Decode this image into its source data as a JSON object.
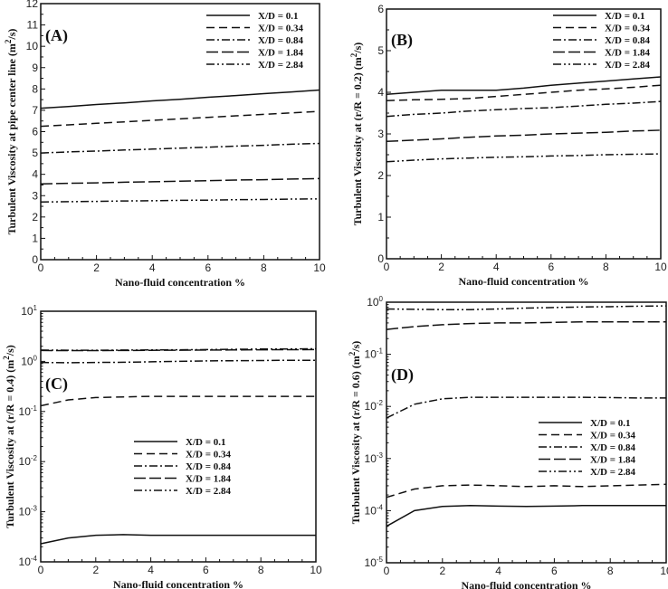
{
  "chart_data": [
    {
      "type": "line",
      "panel_label": "(A)",
      "xlabel": "Nano-fluid concentration %",
      "ylabel": "Turbulent Viscosity at pipe center line (m^2/s)",
      "xlim": [
        0,
        10
      ],
      "ylim": [
        0,
        12
      ],
      "yscale": "linear",
      "xticks": [
        0,
        2,
        4,
        6,
        8,
        10
      ],
      "yticks": [
        0,
        1,
        2,
        3,
        4,
        5,
        6,
        7,
        8,
        9,
        10,
        11,
        12
      ],
      "legend": "top-right",
      "x": [
        0,
        1,
        2,
        3,
        4,
        5,
        6,
        7,
        8,
        9,
        10
      ],
      "series": [
        {
          "name": "X/D = 0.1",
          "values": [
            7.1,
            7.18,
            7.27,
            7.35,
            7.44,
            7.52,
            7.61,
            7.69,
            7.78,
            7.86,
            7.95
          ]
        },
        {
          "name": "X/D = 0.34",
          "values": [
            6.25,
            6.32,
            6.39,
            6.46,
            6.53,
            6.6,
            6.67,
            6.74,
            6.81,
            6.88,
            6.95
          ]
        },
        {
          "name": "X/D = 0.84",
          "values": [
            5.0,
            5.05,
            5.09,
            5.14,
            5.18,
            5.23,
            5.27,
            5.32,
            5.36,
            5.41,
            5.45
          ]
        },
        {
          "name": "X/D = 1.84",
          "values": [
            3.55,
            3.58,
            3.6,
            3.63,
            3.65,
            3.68,
            3.7,
            3.73,
            3.75,
            3.78,
            3.8
          ]
        },
        {
          "name": "X/D = 2.84",
          "values": [
            2.7,
            2.72,
            2.73,
            2.75,
            2.76,
            2.78,
            2.79,
            2.81,
            2.82,
            2.84,
            2.85
          ]
        }
      ]
    },
    {
      "type": "line",
      "panel_label": "(B)",
      "xlabel": "Nano-fluid concentration %",
      "ylabel": "Turbulent Viscosity at (r/R = 0.2) (m^2/s)",
      "xlim": [
        0,
        10
      ],
      "ylim": [
        0,
        6
      ],
      "yscale": "linear",
      "xticks": [
        0,
        2,
        4,
        6,
        8,
        10
      ],
      "yticks": [
        0,
        1,
        2,
        3,
        4,
        5,
        6
      ],
      "legend": "top-right",
      "x": [
        0,
        1,
        2,
        3,
        4,
        5,
        6,
        7,
        8,
        9,
        10
      ],
      "series": [
        {
          "name": "X/D = 0.1",
          "values": [
            3.95,
            4.0,
            4.05,
            4.05,
            4.05,
            4.1,
            4.17,
            4.22,
            4.27,
            4.32,
            4.37
          ]
        },
        {
          "name": "X/D = 0.34",
          "values": [
            3.8,
            3.82,
            3.83,
            3.85,
            3.9,
            3.95,
            4.0,
            4.05,
            4.08,
            4.12,
            4.17
          ]
        },
        {
          "name": "X/D = 0.84",
          "values": [
            3.42,
            3.47,
            3.5,
            3.55,
            3.58,
            3.61,
            3.63,
            3.67,
            3.71,
            3.74,
            3.78
          ]
        },
        {
          "name": "X/D = 1.84",
          "values": [
            2.82,
            2.85,
            2.88,
            2.92,
            2.95,
            2.97,
            3.0,
            3.02,
            3.04,
            3.07,
            3.09
          ]
        },
        {
          "name": "X/D = 2.84",
          "values": [
            2.33,
            2.37,
            2.4,
            2.42,
            2.44,
            2.45,
            2.47,
            2.48,
            2.5,
            2.51,
            2.52
          ]
        }
      ]
    },
    {
      "type": "line",
      "panel_label": "(C)",
      "xlabel": "Nano-fluid concentration %",
      "ylabel": "Turbulent Viscosity at (r/R = 0.4) (m^2/s)",
      "xlim": [
        0,
        10
      ],
      "ylim": [
        0.0001,
        10
      ],
      "yscale": "log",
      "xticks": [
        0,
        2,
        4,
        6,
        8,
        10
      ],
      "yticks": [
        -4,
        -3,
        -2,
        -1,
        0,
        1
      ],
      "legend": "center",
      "x": [
        0,
        1,
        2,
        3,
        4,
        5,
        6,
        7,
        8,
        9,
        10
      ],
      "series": [
        {
          "name": "X/D = 0.1",
          "values": [
            0.00023,
            0.0003,
            0.00034,
            0.00035,
            0.00034,
            0.00034,
            0.00034,
            0.00034,
            0.00034,
            0.00034,
            0.00034
          ]
        },
        {
          "name": "X/D = 0.34",
          "values": [
            0.13,
            0.17,
            0.19,
            0.195,
            0.2,
            0.2,
            0.2,
            0.2,
            0.2,
            0.2,
            0.2
          ]
        },
        {
          "name": "X/D = 0.84",
          "values": [
            0.95,
            0.94,
            0.95,
            0.96,
            0.98,
            1.0,
            1.02,
            1.03,
            1.04,
            1.05,
            1.05
          ]
        },
        {
          "name": "X/D = 1.84",
          "values": [
            1.65,
            1.64,
            1.64,
            1.65,
            1.66,
            1.67,
            1.68,
            1.69,
            1.7,
            1.71,
            1.72
          ]
        },
        {
          "name": "X/D = 2.84",
          "values": [
            1.68,
            1.67,
            1.67,
            1.68,
            1.69,
            1.7,
            1.72,
            1.74,
            1.76,
            1.77,
            1.78
          ]
        }
      ]
    },
    {
      "type": "line",
      "panel_label": "(D)",
      "xlabel": "Nano-fluid concentration %",
      "ylabel": "Turbulent Viscosity at (r/R = 0.6) (m^2/s)",
      "xlim": [
        0,
        10
      ],
      "ylim": [
        1e-05,
        1
      ],
      "yscale": "log",
      "xticks": [
        0,
        2,
        4,
        6,
        8,
        10
      ],
      "yticks": [
        -5,
        -4,
        -3,
        -2,
        -1,
        0
      ],
      "legend": "middle-right",
      "x": [
        0,
        1,
        2,
        3,
        4,
        5,
        6,
        7,
        8,
        9,
        10
      ],
      "series": [
        {
          "name": "X/D = 0.1",
          "values": [
            5e-05,
            0.0001,
            0.00012,
            0.000125,
            0.000122,
            0.00012,
            0.000122,
            0.000125,
            0.000125,
            0.000125,
            0.000125
          ]
        },
        {
          "name": "X/D = 0.34",
          "values": [
            0.00018,
            0.00026,
            0.0003,
            0.00031,
            0.0003,
            0.00029,
            0.0003,
            0.00029,
            0.0003,
            0.00031,
            0.00032
          ]
        },
        {
          "name": "X/D = 0.84",
          "values": [
            0.006,
            0.011,
            0.014,
            0.015,
            0.015,
            0.015,
            0.015,
            0.015,
            0.0148,
            0.0145,
            0.0145
          ]
        },
        {
          "name": "X/D = 1.84",
          "values": [
            0.3,
            0.34,
            0.37,
            0.39,
            0.4,
            0.4,
            0.41,
            0.42,
            0.42,
            0.42,
            0.42
          ]
        },
        {
          "name": "X/D = 2.84",
          "values": [
            0.74,
            0.73,
            0.72,
            0.72,
            0.74,
            0.77,
            0.79,
            0.81,
            0.82,
            0.84,
            0.85
          ]
        }
      ]
    }
  ],
  "style": {
    "line_color": "#111111",
    "dash_patterns": [
      "solid",
      "dashed",
      "dash-dot",
      "long-dash",
      "dash-dot-dot"
    ]
  }
}
